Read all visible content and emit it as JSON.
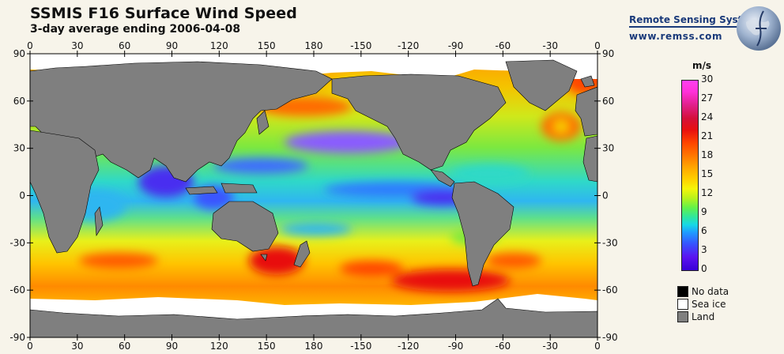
{
  "header": {
    "title": "SSMIS F16 Surface Wind Speed",
    "subtitle": "3-day average ending 2006-04-08"
  },
  "branding": {
    "name": "Remote Sensing Systems",
    "url": "www.remss.com"
  },
  "map": {
    "x_tick_labels": [
      "0",
      "30",
      "60",
      "90",
      "120",
      "150",
      "180",
      "-150",
      "-120",
      "-90",
      "-60",
      "-30",
      "0"
    ],
    "y_tick_labels": [
      "90",
      "60",
      "30",
      "0",
      "-30",
      "-60",
      "-90"
    ],
    "colors": {
      "land": "#7f7f7f",
      "sea_ice": "#ffffff",
      "no_data": "#000000"
    }
  },
  "colorbar": {
    "unit": "m/s",
    "labels": [
      "30",
      "27",
      "24",
      "21",
      "18",
      "15",
      "12",
      "9",
      "6",
      "3",
      "0"
    ],
    "range": [
      0,
      30
    ]
  },
  "legend": [
    {
      "label": "No data",
      "color": "#000000"
    },
    {
      "label": "Sea ice",
      "color": "#ffffff"
    },
    {
      "label": "Land",
      "color": "#7f7f7f"
    }
  ]
}
